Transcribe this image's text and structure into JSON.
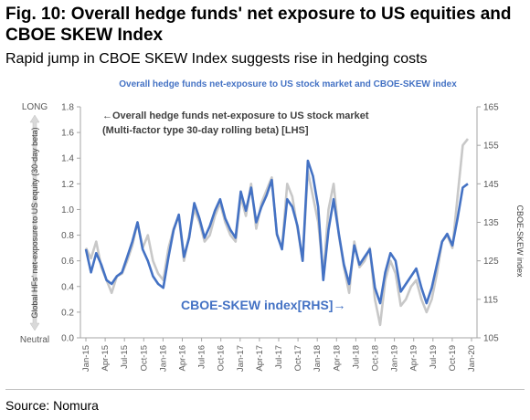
{
  "figure": {
    "title": "Fig. 10:  Overall hedge funds' net exposure to US equities and CBOE SKEW Index",
    "subtitle": "Rapid jump in CBOE SKEW Index suggests rise in hedging costs",
    "source": "Source: Nomura"
  },
  "colors": {
    "lhs_series": "#c8c8c8",
    "rhs_series": "#4472c4",
    "chart_title": "#4472c4",
    "axis_text": "#595959"
  },
  "chart_data": {
    "type": "line",
    "title": "Overall hedge funds net-exposure to US stock market and CBOE-SKEW index",
    "xlabel": "",
    "ylabel_left": "Global HFs' net-exposure to US equity (30-day beta)",
    "ylabel_right": "CBOE-SKEW index",
    "y_left_top_marker": "LONG",
    "y_left_bottom_marker": "Neutral",
    "ylim_left": [
      0.0,
      1.8
    ],
    "yticks_left": [
      "0.0",
      "0.2",
      "0.4",
      "0.6",
      "0.8",
      "1.0",
      "1.2",
      "1.4",
      "1.6",
      "1.8"
    ],
    "ylim_right": [
      105,
      165
    ],
    "yticks_right": [
      "105",
      "115",
      "125",
      "135",
      "145",
      "155",
      "165"
    ],
    "x_range": [
      "2015-01",
      "2020-01"
    ],
    "xticks": [
      "Jan-15",
      "Apr-15",
      "Jul-15",
      "Oct-15",
      "Jan-16",
      "Apr-16",
      "Jul-16",
      "Oct-16",
      "Jan-17",
      "Apr-17",
      "Jul-17",
      "Oct-17",
      "Jan-18",
      "Apr-18",
      "Jul-18",
      "Oct-18",
      "Jan-19",
      "Apr-19",
      "Jul-19",
      "Oct-19",
      "Jan-20"
    ],
    "grid": false,
    "annotations": {
      "lhs_label_line1": "←Overall hedge funds net-exposure to US stock market",
      "lhs_label_line2": "(Multi-factor type 30-day rolling beta) [LHS]",
      "rhs_label": "CBOE-SKEW index[RHS]→"
    },
    "series": [
      {
        "axis": "left",
        "values": [
          0.7,
          0.62,
          0.75,
          0.55,
          0.45,
          0.35,
          0.48,
          0.5,
          0.6,
          0.72,
          0.9,
          0.7,
          0.8,
          0.6,
          0.5,
          0.45,
          0.7,
          0.85,
          0.95,
          0.6,
          0.8,
          1.0,
          0.9,
          0.75,
          0.8,
          0.95,
          1.05,
          0.9,
          0.8,
          0.75,
          1.1,
          0.95,
          1.2,
          0.85,
          1.05,
          1.15,
          1.25,
          0.8,
          0.7,
          1.2,
          1.1,
          0.85,
          0.6,
          1.3,
          1.1,
          0.9,
          0.5,
          1.0,
          1.2,
          0.8,
          0.55,
          0.35,
          0.75,
          0.55,
          0.6,
          0.7,
          0.3,
          0.1,
          0.45,
          0.6,
          0.5,
          0.25,
          0.3,
          0.4,
          0.45,
          0.3,
          0.2,
          0.3,
          0.5,
          0.75,
          0.8,
          0.7,
          1.1,
          1.5,
          1.55
        ]
      },
      {
        "axis": "right",
        "values": [
          128,
          122,
          127,
          124,
          120,
          119,
          121,
          122,
          126,
          130,
          135,
          128,
          125,
          121,
          119,
          118,
          126,
          133,
          137,
          126,
          131,
          140,
          136,
          131,
          134,
          138,
          141,
          136,
          133,
          131,
          143,
          138,
          144,
          135,
          139,
          142,
          146,
          132,
          128,
          141,
          139,
          134,
          125,
          151,
          147,
          139,
          120,
          133,
          141,
          132,
          124,
          119,
          129,
          124,
          126,
          128,
          118,
          114,
          122,
          127,
          125,
          117,
          119,
          121,
          123,
          118,
          114,
          118,
          124,
          130,
          132,
          129,
          136,
          144,
          145
        ]
      }
    ]
  }
}
